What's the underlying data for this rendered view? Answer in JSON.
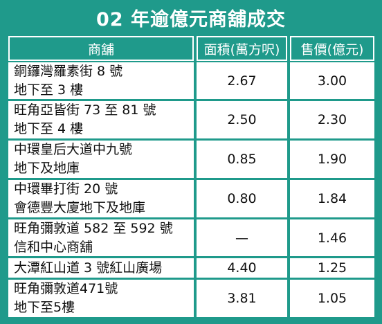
{
  "title": "02 年逾億元商舖成交",
  "table": {
    "header": [
      "商舖",
      "面積(萬方呎)",
      "售價(億元)"
    ],
    "rows": [
      [
        [
          "銅鑼灣羅素街 8 號",
          "地下至 3 樓"
        ],
        "2.67",
        "3.00"
      ],
      [
        [
          "旺角亞皆街 73 至 81 號",
          "地下至 4 樓"
        ],
        "2.50",
        "2.30"
      ],
      [
        [
          "中環皇后大道中九號",
          "地下及地庫"
        ],
        "0.85",
        "1.90"
      ],
      [
        [
          "中環畢打街 20 號",
          "會德豐大廈地下及地庫"
        ],
        "0.80",
        "1.84"
      ],
      [
        [
          "旺角彌敦道 582 至 592 號",
          "信和中心商舖"
        ],
        "—",
        "1.46"
      ],
      [
        [
          "大潭紅山道 3 號紅山廣場"
        ],
        "4.40",
        "1.25"
      ],
      [
        [
          "旺角彌敦道471號",
          "地下至5樓"
        ],
        "3.81",
        "1.05"
      ]
    ]
  }
}
